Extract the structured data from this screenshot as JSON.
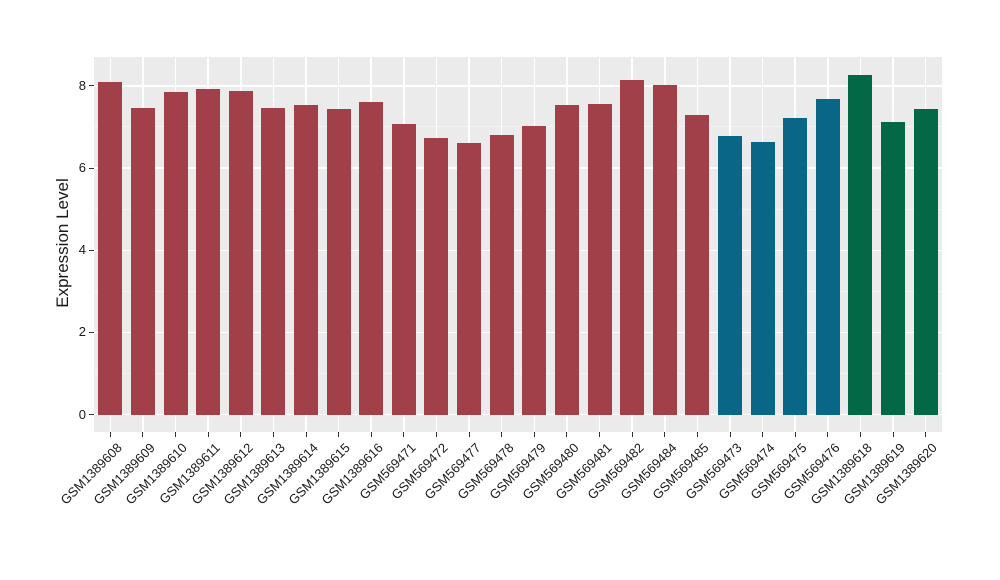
{
  "chart_data": {
    "type": "bar",
    "title": "",
    "xlabel": "",
    "ylabel": "Expression Level",
    "categories": [
      "GSM1389608",
      "GSM1389609",
      "GSM1389610",
      "GSM1389611",
      "GSM1389612",
      "GSM1389613",
      "GSM1389614",
      "GSM1389615",
      "GSM1389616",
      "GSM569471",
      "GSM569472",
      "GSM569477",
      "GSM569478",
      "GSM569479",
      "GSM569480",
      "GSM569481",
      "GSM569482",
      "GSM569484",
      "GSM569485",
      "GSM569473",
      "GSM569474",
      "GSM569475",
      "GSM569476",
      "GSM1389618",
      "GSM1389619",
      "GSM1389620"
    ],
    "values": [
      8.08,
      7.45,
      7.84,
      7.93,
      7.88,
      7.47,
      7.53,
      7.43,
      7.6,
      7.07,
      6.74,
      6.61,
      6.8,
      7.02,
      7.53,
      7.56,
      8.15,
      8.03,
      7.28,
      6.78,
      6.63,
      7.22,
      7.68,
      8.27,
      7.13,
      7.44
    ],
    "bar_colors": [
      "#A14049",
      "#A14049",
      "#A14049",
      "#A14049",
      "#A14049",
      "#A14049",
      "#A14049",
      "#A14049",
      "#A14049",
      "#A14049",
      "#A14049",
      "#A14049",
      "#A14049",
      "#A14049",
      "#A14049",
      "#A14049",
      "#A14049",
      "#A14049",
      "#A14049",
      "#0A6686",
      "#0A6686",
      "#0A6686",
      "#0A6686",
      "#036845",
      "#036845",
      "#036845"
    ],
    "palette": {
      "group1_maroon": "#A14049",
      "group2_teal": "#0A6686",
      "group3_green": "#036845"
    },
    "yticks": [
      "0",
      "2",
      "4",
      "6",
      "8"
    ],
    "ytick_values": [
      0,
      2,
      4,
      6,
      8
    ],
    "minor_ytick_values": [
      1,
      3,
      5,
      7
    ],
    "axis_range": {
      "min": -0.42,
      "max": 8.7
    },
    "grid": true,
    "legend": "none",
    "x_tick_rotation": -45,
    "style": {
      "panel_bg": "#EBEBEB",
      "grid_major_color": "#FFFFFF",
      "grid_minor_color": "#F4F4F4",
      "tick_mark_color": "#333333",
      "text_color": "#1A1A1A"
    }
  }
}
